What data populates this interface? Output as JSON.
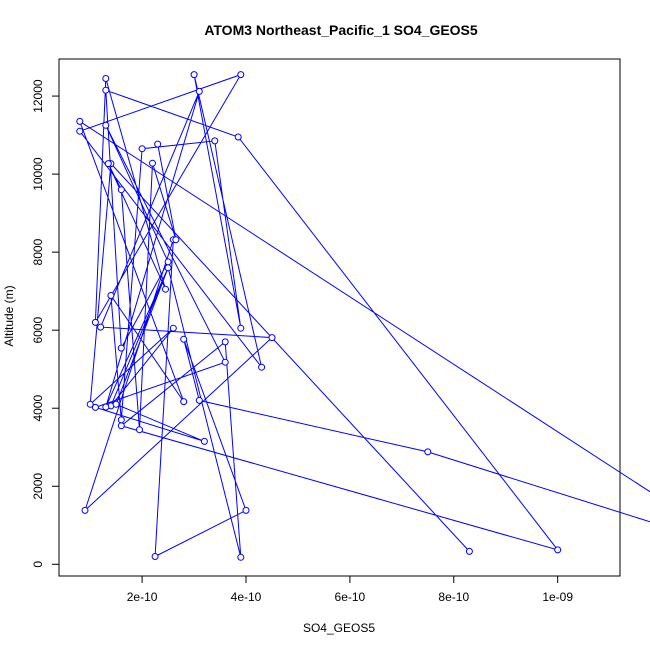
{
  "chart_data": {
    "type": "line",
    "title": "ATOM3 Northeast_Pacific_1 SO4_GEOS5",
    "xlabel": "SO4_GEOS5",
    "ylabel": "Altitude (m)",
    "xlim": [
      4e-11,
      1.12e-09
    ],
    "ylim": [
      -300,
      12950
    ],
    "x_ticks": [
      2e-10,
      4e-10,
      6e-10,
      8e-10,
      1e-09
    ],
    "x_tick_labels": [
      "2e-10",
      "4e-10",
      "6e-10",
      "8e-10",
      "1e-09"
    ],
    "y_ticks": [
      0,
      2000,
      4000,
      6000,
      8000,
      10000,
      12000
    ],
    "y_tick_labels": [
      "0",
      "2000",
      "4000",
      "6000",
      "8000",
      "10000",
      "12000"
    ],
    "grid": false,
    "line_color": "#0000ff",
    "marker": "open-circle",
    "series": [
      {
        "x": [
          8.3e-10,
          1.4e-10,
          1e-10,
          2.6e-10,
          1.4e-10,
          2.5e-10,
          1.5e-10,
          3.2e-10,
          1.1e-10,
          3.6e-10,
          1.3e-10,
          2.5e-10,
          1.6e-10,
          1.3e-10,
          3.85e-10,
          1e-09,
          1.6e-10,
          3.6e-10,
          3.9e-10,
          2.5e-10,
          1.3e-10,
          3.1e-10,
          1.2e-10,
          4.5e-10,
          9e-11,
          2.6e-10,
          2.25e-10,
          4e-10,
          2.8e-10,
          3.1e-10,
          7.5e-10,
          1.35e-09,
          8e-11,
          2.8e-10,
          1.4e-10,
          1.6e-10,
          2e-10,
          3.4e-10,
          3.9e-10,
          3e-10,
          4.3e-10,
          8e-11,
          3.9e-10,
          1.1e-10,
          1.3e-10,
          2.45e-10,
          1.35e-10,
          1.6e-10,
          1.95e-10,
          2.2e-10,
          2.65e-10,
          2.3e-10
        ],
        "y": [
          330,
          10270,
          4100,
          6050,
          4060,
          7600,
          4100,
          3150,
          4020,
          5180,
          11250,
          7750,
          5540,
          12150,
          10950,
          370,
          3550,
          5700,
          180,
          7600,
          4030,
          12120,
          6080,
          5810,
          1380,
          8320,
          200,
          1380,
          5770,
          4200,
          2880,
          370,
          11350,
          4170,
          6890,
          3700,
          10650,
          10850,
          6050,
          12550,
          5050,
          11100,
          12550,
          6200,
          12450,
          7050,
          10270,
          9600,
          3450,
          10280,
          8320,
          10770
        ]
      }
    ]
  }
}
